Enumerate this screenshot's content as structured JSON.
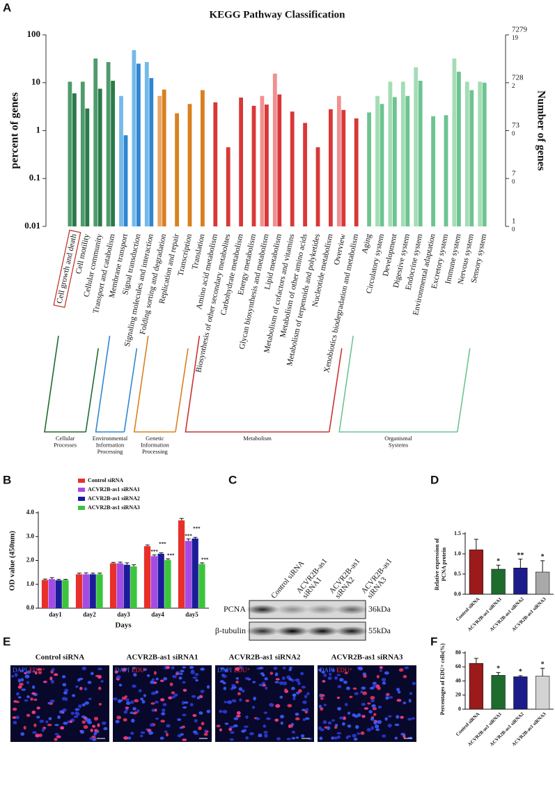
{
  "chart_data": [
    {
      "type": "kegg",
      "panel": "A",
      "title": "KEGG Pathway Classification",
      "ylabel": "percent of genes",
      "y2label": "Number of genes",
      "log": true,
      "ylim": [
        0.01,
        100
      ],
      "yticks": [
        0.01,
        0.1,
        1,
        10,
        100
      ],
      "y2lim": [
        0.7279,
        7279
      ],
      "y2ticks": [
        {
          "value": 0.7279,
          "label": "1"
        },
        {
          "value": 7.279,
          "label": "7"
        },
        {
          "value": 72.79,
          "label": "73"
        },
        {
          "value": 727.9,
          "label": "728"
        },
        7279
      ],
      "y2tick_sublabels": [
        "0",
        "0",
        "0",
        "2",
        "19"
      ],
      "highlight": "Cell growth and death",
      "groups": [
        {
          "label": [
            "Cellular",
            "Processes"
          ],
          "bracket_color": "#1e6b2e",
          "categories": [
            "Cell growth and death",
            "Cell motility",
            "Cellular community",
            "Transport and catabolism"
          ],
          "series": [
            {
              "color": "#4f9b6c",
              "values": [
                10.5,
                10.5,
                32,
                27
              ]
            },
            {
              "color": "#2a7a4a",
              "values": [
                6,
                2.9,
                7.5,
                11
              ]
            }
          ]
        },
        {
          "label": [
            "Environmental",
            "Information",
            "Processing"
          ],
          "bracket_color": "#2f86d1",
          "categories": [
            "Membrane transport",
            "Signal transduction",
            "Signaling molecules and interaction"
          ],
          "series": [
            {
              "color": "#74b9ea",
              "values": [
                5.3,
                48,
                27
              ]
            },
            {
              "color": "#2f86d1",
              "values": [
                0.8,
                25,
                12.5
              ]
            }
          ]
        },
        {
          "label": [
            "Genetic",
            "Information",
            "Processing"
          ],
          "bracket_color": "#d9801e",
          "categories": [
            "Folding sorting and degradation",
            "Replication and repair",
            "Transcription",
            "Translation"
          ],
          "series": [
            {
              "color": "#e9a868",
              "values": [
                5.3,
                null,
                null,
                null
              ]
            },
            {
              "color": "#d9801e",
              "values": [
                7.2,
                2.3,
                3.6,
                7
              ]
            }
          ]
        },
        {
          "label": [
            "Metabolism"
          ],
          "bracket_color": "#c83232",
          "categories": [
            "Amino acid metabolism",
            "Biosynthesis of other secondary metabolites",
            "Carbohydrate metabolism",
            "Energy metabolism",
            "Glycan biosynthesis and metabolism",
            "Lipid metabolism",
            "Metabolism of cofactors and vitamins",
            "Metabolism of other amino acids",
            "Metabolism of terpenoids and polyketides",
            "Nucleotide metabolism",
            "Overview",
            "Xenobiotics biodegradation and metabolism"
          ],
          "series": [
            {
              "color": "#f09090",
              "values": [
                null,
                null,
                null,
                null,
                5.3,
                15.5,
                null,
                null,
                null,
                null,
                5.3,
                null
              ]
            },
            {
              "color": "#d93838",
              "values": [
                3.9,
                0.45,
                4.9,
                3.3,
                3.5,
                5.7,
                2.5,
                1.45,
                0.45,
                2.8,
                2.7,
                1.8
              ]
            }
          ]
        },
        {
          "label": [
            "Organismal",
            "Systems"
          ],
          "bracket_color": "#6cc490",
          "categories": [
            "Aging",
            "Circulatory system",
            "Development",
            "Digestive system",
            "Endocrine system",
            "Environmental adaptation",
            "Excretory system",
            "Immune system",
            "Nervous system",
            "Sensory system"
          ],
          "series": [
            {
              "color": "#a4dcb6",
              "values": [
                null,
                5.3,
                10.5,
                10.5,
                21,
                null,
                null,
                32,
                10.5,
                10.5
              ]
            },
            {
              "color": "#6cc490",
              "values": [
                2.4,
                3.6,
                5,
                5.3,
                11,
                2,
                2.1,
                17,
                7,
                10
              ]
            }
          ]
        }
      ]
    },
    {
      "type": "grouped",
      "panel": "B",
      "xlabel": "Days",
      "ylabel": "OD value (450nm)",
      "ylim": [
        0,
        4
      ],
      "yticks": [
        {
          "value": 0,
          "label": "0.0"
        },
        {
          "value": 1,
          "label": "1.0"
        },
        {
          "value": 2,
          "label": "2.0"
        },
        {
          "value": 3,
          "label": "3.0"
        },
        {
          "value": 4,
          "label": "4.0"
        }
      ],
      "categories": [
        "day1",
        "day2",
        "day3",
        "day4",
        "day5"
      ],
      "series": [
        {
          "name": "Control siRNA",
          "color": "#e8302a",
          "values": [
            1.18,
            1.42,
            1.88,
            2.6,
            3.68
          ],
          "errors": [
            0.04,
            0.05,
            0.04,
            0.05,
            0.08
          ],
          "annotations": [
            null,
            null,
            null,
            null,
            null
          ]
        },
        {
          "name": "ACVR2B-as1 siRNA1",
          "color": "#a64ae6",
          "values": [
            1.22,
            1.42,
            1.88,
            2.18,
            2.82
          ],
          "errors": [
            0.06,
            0.06,
            0.05,
            0.05,
            0.08
          ],
          "annotations": [
            null,
            null,
            null,
            "***",
            "***"
          ]
        },
        {
          "name": "ACVR2B-as1 siRNA2",
          "color": "#1c1c9a",
          "values": [
            1.17,
            1.42,
            1.82,
            2.28,
            2.92
          ],
          "errors": [
            0.04,
            0.05,
            0.08,
            0.04,
            0.05
          ],
          "annotations": [
            null,
            null,
            null,
            "***",
            "***"
          ]
        },
        {
          "name": "ACVR2B-as1 siRNA3",
          "color": "#3cc43c",
          "values": [
            1.18,
            1.42,
            1.75,
            2.02,
            1.85
          ],
          "errors": [
            0.03,
            0.05,
            0.07,
            0.05,
            0.05
          ],
          "annotations": [
            null,
            null,
            null,
            "***",
            "***"
          ]
        }
      ]
    },
    {
      "type": "simple",
      "panel": "D",
      "ylabel": [
        "Relative expression of",
        "PCNA protein"
      ],
      "ylim": [
        0,
        1.5
      ],
      "yticks": [
        {
          "value": 0,
          "label": "0.0"
        },
        {
          "value": 0.5,
          "label": "0.5"
        },
        {
          "value": 1,
          "label": "1.0"
        },
        {
          "value": 1.5,
          "label": "1.5"
        }
      ],
      "categories": [
        "Control siRNA",
        "ACVR2B-as1 siRNA1",
        "ACVR2B-as1 siRNA2",
        "ACVR2B-as1 siRNA3"
      ],
      "values": [
        1.1,
        0.62,
        0.65,
        0.55
      ],
      "errors": [
        0.26,
        0.1,
        0.22,
        0.28
      ],
      "colors": [
        "#9b1b1b",
        "#1e6b2e",
        "#1c1c8a",
        "#a9a9a9"
      ],
      "annotations": [
        null,
        "*",
        "**",
        "*"
      ]
    },
    {
      "type": "simple",
      "panel": "F",
      "ylabel": [
        "Percentages of EDU+ cells(%)"
      ],
      "ylim": [
        0,
        80
      ],
      "yticks": [
        0,
        20,
        40,
        60,
        80
      ],
      "categories": [
        "Control siRNA",
        "ACVR2B-as1 siRNA1",
        "ACVR2B-as1 siRNA2",
        "ACVR2B-as1 siRNA3"
      ],
      "values": [
        65,
        48,
        46,
        47
      ],
      "errors": [
        7,
        4,
        1.5,
        11
      ],
      "colors": [
        "#9b1b1b",
        "#1e6b2e",
        "#1c1c8a",
        "#d3d3d3"
      ],
      "annotations": [
        null,
        "*",
        "*",
        "*"
      ]
    }
  ],
  "blot": {
    "panel": "C",
    "columns": [
      [
        "Control siRNA"
      ],
      [
        "ACVR2B-as1",
        "siRNA1"
      ],
      [
        "ACVR2B-as1",
        "siRNA2"
      ],
      [
        "ACVR2B-as1",
        "siRNA3"
      ]
    ],
    "rows": [
      {
        "label": "PCNA",
        "size": "36kDa"
      },
      {
        "label": "β-tubulin",
        "size": "55kDa"
      }
    ]
  },
  "micrographs": {
    "panel": "E",
    "titles": [
      "Control siRNA",
      "ACVR2B-as1 siRNA1",
      "ACVR2B-as1 siRNA2",
      "ACVR2B-as1 siRNA3"
    ],
    "channels": [
      "DAPI",
      "EDU⁺"
    ]
  }
}
